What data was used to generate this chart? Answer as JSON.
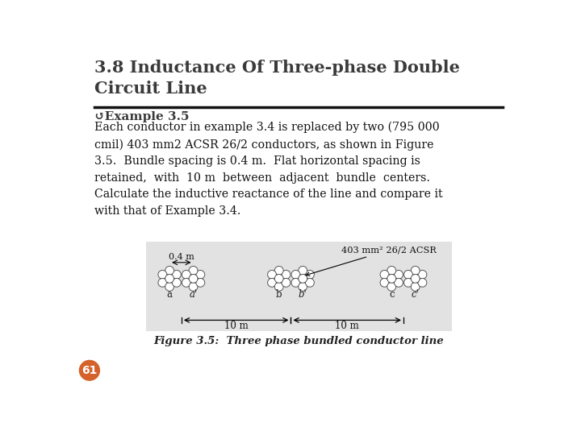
{
  "title": "3.8 Inductance Of Three-phase Double\nCircuit Line",
  "title_fontsize": 15,
  "title_color": "#3A3A3A",
  "slide_bg": "#FFFFFF",
  "example_label": "↺Example 3.5",
  "body_text": "Each conductor in example 3.4 is replaced by two (795 000\ncmil) 403 mm2 ACSR 26/2 conductors, as shown in Figure\n3.5.  Bundle spacing is 0.4 m.  Flat horizontal spacing is\nretained,  with  10 m  between  adjacent  bundle  centers.\nCalculate the inductive reactance of the line and compare it\nwith that of Example 3.4.",
  "figure_caption": "Figure 3.5:  Three phase bundled conductor line",
  "page_number": "61",
  "page_bg": "#D4622A",
  "fig_bg": "#E2E2E2",
  "conductor_fill": "#FFFFFF",
  "conductor_edge": "#555555",
  "annotation_text": "403 mm² 26/2 ACSR"
}
